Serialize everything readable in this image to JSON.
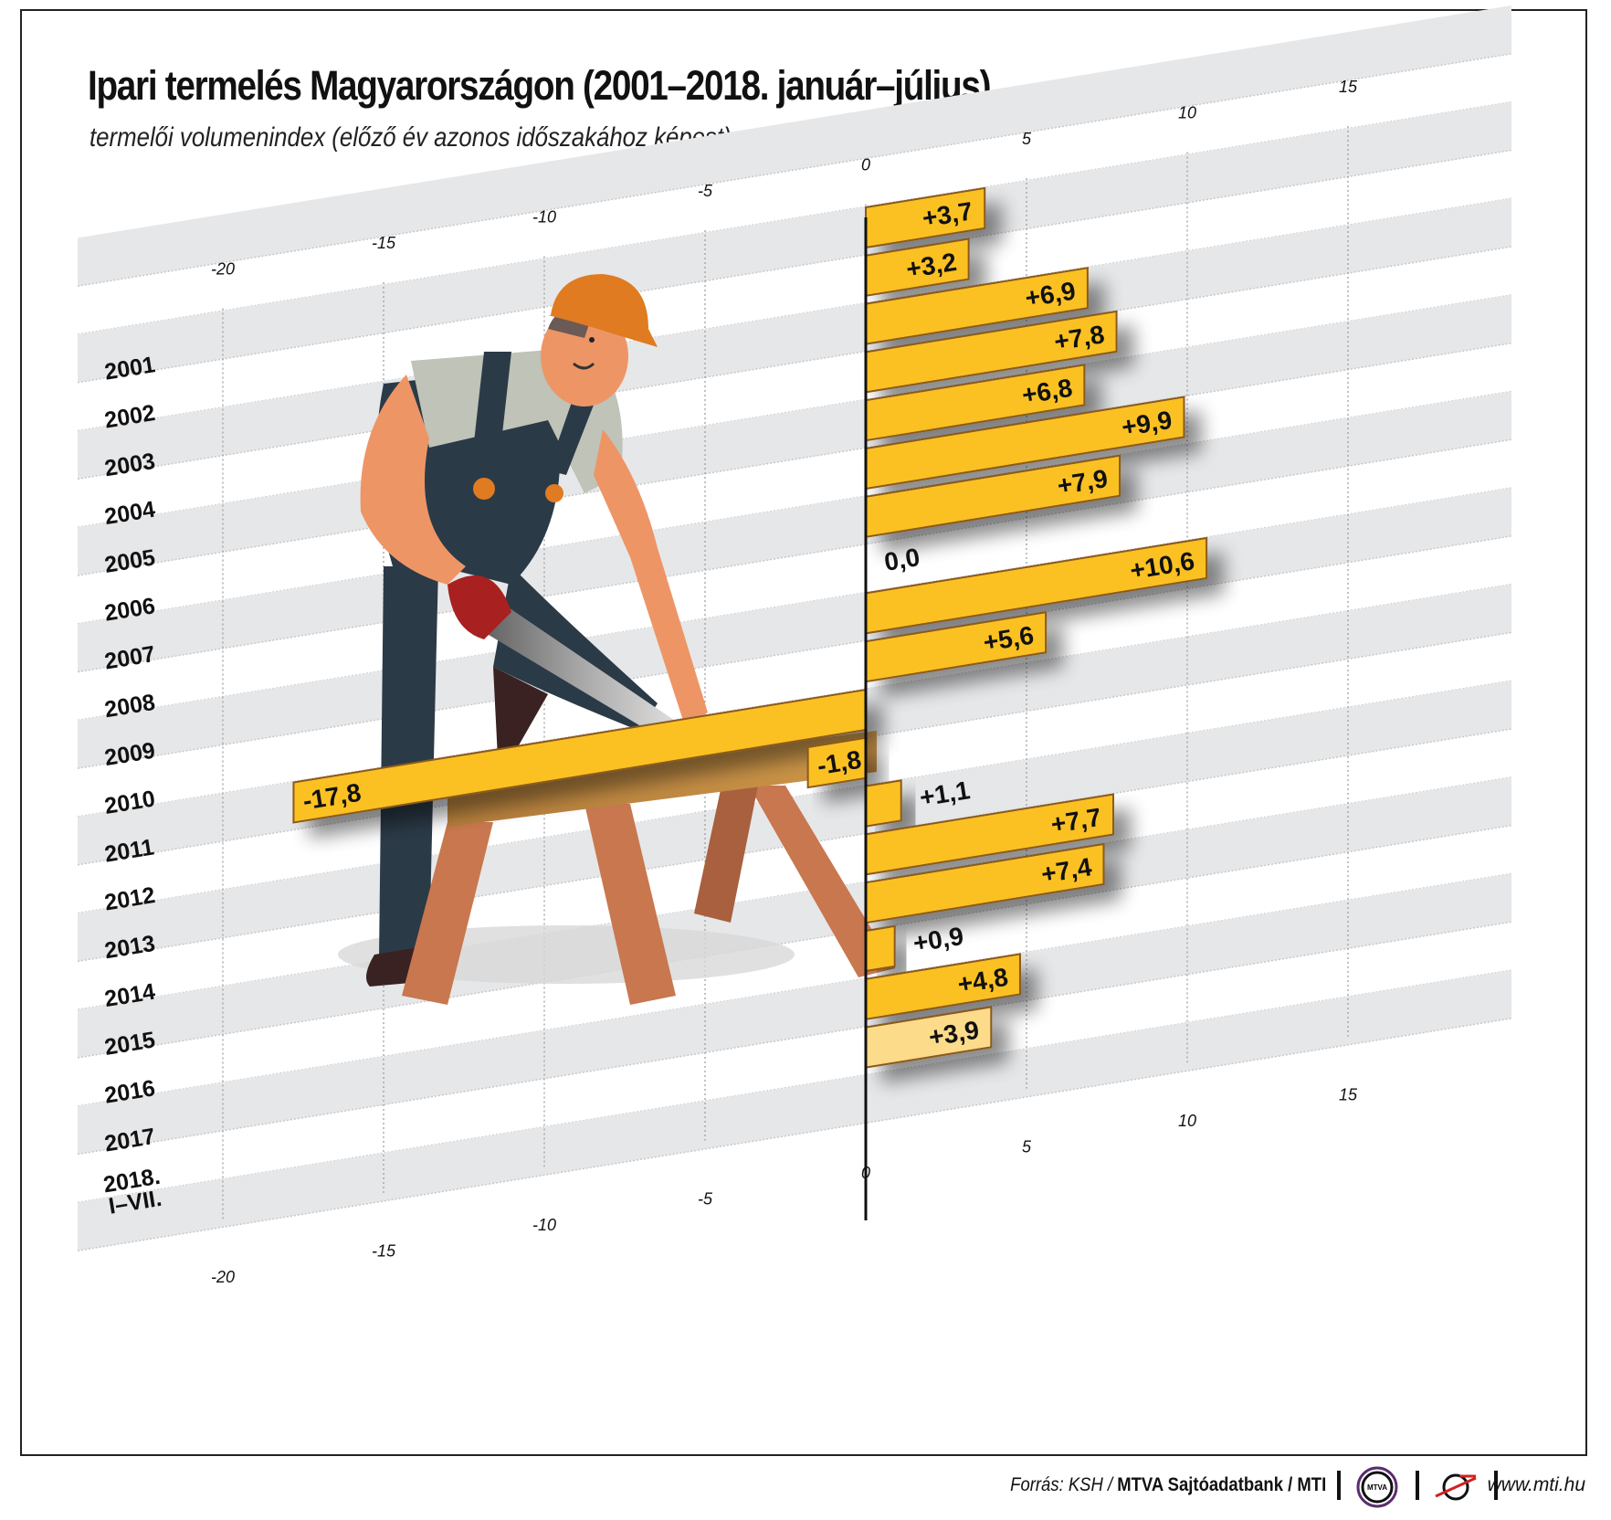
{
  "header": {
    "title": "Ipari termelés Magyarországon (2001–2018. január–július)",
    "subtitle": "termelői volumenindex (előző év azonos időszakához képest)"
  },
  "axis": {
    "ticks": [
      "-20",
      "-15",
      "-10",
      "-5",
      "0",
      "5",
      "10",
      "15"
    ]
  },
  "footer": {
    "source_prefix": "Forrás: KSH / ",
    "source_bold": "MTVA Sajtóadatbank / MTI",
    "logo1_text": "MTVA",
    "url": "www.mti.hu"
  },
  "colors": {
    "bar": "#FBC124",
    "bar_highlight": "#FCDB8A",
    "bar_border": "#8B5A1E",
    "band": "#E6E7E9",
    "helmet": "#E07B22",
    "overalls": "#2B3A47",
    "skin": "#EE9566",
    "shirt": "#BFC3B8",
    "wood": "#C9774E"
  },
  "chart_data": {
    "type": "bar",
    "orientation": "horizontal",
    "title": "Ipari termelés Magyarországon (2001–2018. január–július)",
    "subtitle": "termelői volumenindex (előző év azonos időszakához képest)",
    "xlabel": "",
    "ylabel": "",
    "xlim": [
      -20,
      15
    ],
    "categories": [
      "2001",
      "2002",
      "2003",
      "2004",
      "2005",
      "2006",
      "2007",
      "2008",
      "2009",
      "2010",
      "2011",
      "2012",
      "2013",
      "2014",
      "2015",
      "2016",
      "2017",
      "2018. I–VII."
    ],
    "values": [
      3.7,
      3.2,
      6.9,
      7.8,
      6.8,
      9.9,
      7.9,
      0.0,
      10.6,
      5.6,
      -17.8,
      -1.8,
      1.1,
      7.7,
      7.4,
      0.9,
      4.8,
      3.9
    ],
    "labels": [
      "+3,7",
      "+3,2",
      "+6,9",
      "+7,8",
      "+6,8",
      "+9,9",
      "+7,9",
      "0,0",
      "+10,6",
      "+5,6",
      "-17,8",
      "-1,8",
      "+1,1",
      "+7,7",
      "+7,4",
      "+0,9",
      "+4,8",
      "+3,9"
    ],
    "highlight_last": true,
    "grid": true,
    "source": "Forrás: KSH / MTVA Sajtóadatbank / MTI"
  }
}
